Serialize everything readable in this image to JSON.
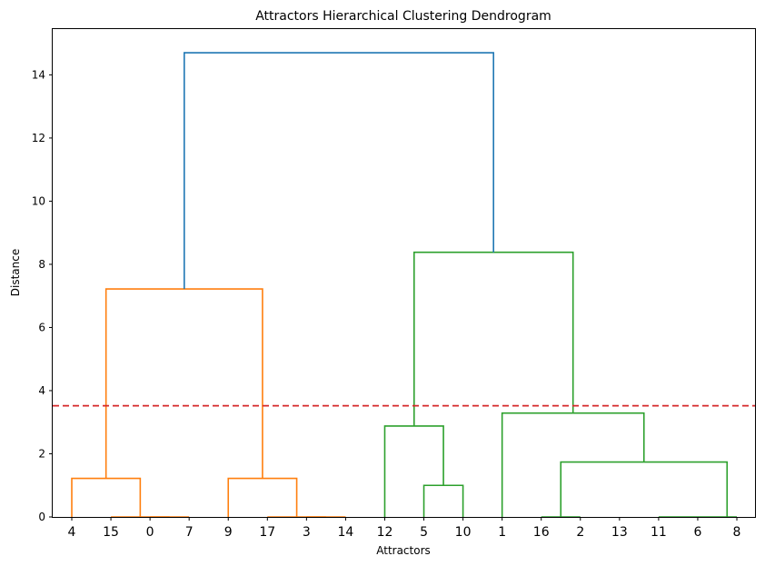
{
  "chart_data": {
    "type": "dendrogram",
    "title": "Attractors Hierarchical Clustering Dendrogram",
    "xlabel": "Attractors",
    "ylabel": "Distance",
    "ylim": [
      0,
      15.45
    ],
    "yticks": [
      0,
      2,
      4,
      6,
      8,
      10,
      12,
      14
    ],
    "leaves": [
      "4",
      "15",
      "0",
      "7",
      "9",
      "17",
      "3",
      "14",
      "12",
      "5",
      "10",
      "1",
      "16",
      "2",
      "13",
      "11",
      "6",
      "8"
    ],
    "threshold": {
      "value": 3.52,
      "color": "#d62728"
    },
    "colors": {
      "cluster1": "#ff7f0e",
      "cluster2": "#2ca02c",
      "root": "#1f77b4"
    },
    "links": [
      {
        "left": [
          2,
          0
        ],
        "right": [
          3,
          0
        ],
        "height": 0.0,
        "color": "cluster1"
      },
      {
        "left": [
          1,
          0
        ],
        "right": [
          2.5,
          0.0
        ],
        "height": 0.0,
        "color": "cluster1"
      },
      {
        "left": [
          0,
          0
        ],
        "right": [
          1.75,
          0.0
        ],
        "height": 1.22,
        "color": "cluster1"
      },
      {
        "left": [
          6,
          0
        ],
        "right": [
          7,
          0
        ],
        "height": 0.0,
        "color": "cluster1"
      },
      {
        "left": [
          5,
          0
        ],
        "right": [
          6.5,
          0.0
        ],
        "height": 0.0,
        "color": "cluster1"
      },
      {
        "left": [
          4,
          0
        ],
        "right": [
          5.75,
          0.0
        ],
        "height": 1.22,
        "color": "cluster1"
      },
      {
        "left": [
          0.875,
          1.22
        ],
        "right": [
          4.875,
          1.22
        ],
        "height": 7.22,
        "color": "cluster1"
      },
      {
        "left": [
          9,
          0
        ],
        "right": [
          10,
          0
        ],
        "height": 1.0,
        "color": "cluster2"
      },
      {
        "left": [
          8,
          0
        ],
        "right": [
          9.5,
          1.0
        ],
        "height": 2.88,
        "color": "cluster2"
      },
      {
        "left": [
          12,
          0
        ],
        "right": [
          13,
          0
        ],
        "height": 0.0,
        "color": "cluster2"
      },
      {
        "left": [
          15,
          0
        ],
        "right": [
          16,
          0
        ],
        "height": 0.0,
        "color": "cluster2"
      },
      {
        "left": [
          16,
          0
        ],
        "right": [
          17,
          0
        ],
        "height": 0.0,
        "color": "cluster2"
      },
      {
        "left": [
          12.5,
          0.0
        ],
        "right": [
          16.75,
          0.0
        ],
        "height": 1.74,
        "color": "cluster2"
      },
      {
        "left": [
          11,
          0
        ],
        "right": [
          14.625,
          1.74
        ],
        "height": 3.29,
        "color": "cluster2"
      },
      {
        "left": [
          8.75,
          2.88
        ],
        "right": [
          12.8125,
          3.29
        ],
        "height": 8.38,
        "color": "cluster2"
      },
      {
        "left": [
          2.875,
          7.22
        ],
        "right": [
          10.78,
          8.38
        ],
        "height": 14.7,
        "color": "root"
      }
    ]
  }
}
